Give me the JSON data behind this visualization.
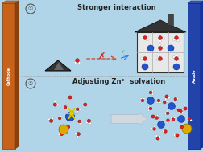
{
  "bg_color": "#b0d4e8",
  "cathode_color": "#c8621a",
  "anode_color": "#2244aa",
  "cathode_label": "Cathode",
  "anode_label": "Anode",
  "title1": "Stronger interaction",
  "title2": "Adjusting Zn²⁺ solvation",
  "water_red": "#dd2222",
  "zn_blue": "#2255cc",
  "so4_yellow": "#ddaa00",
  "arrow_color": "#cccccc",
  "dashed_color": "#cc4422",
  "check_color": "#22aa44",
  "x_color": "#cc2222"
}
